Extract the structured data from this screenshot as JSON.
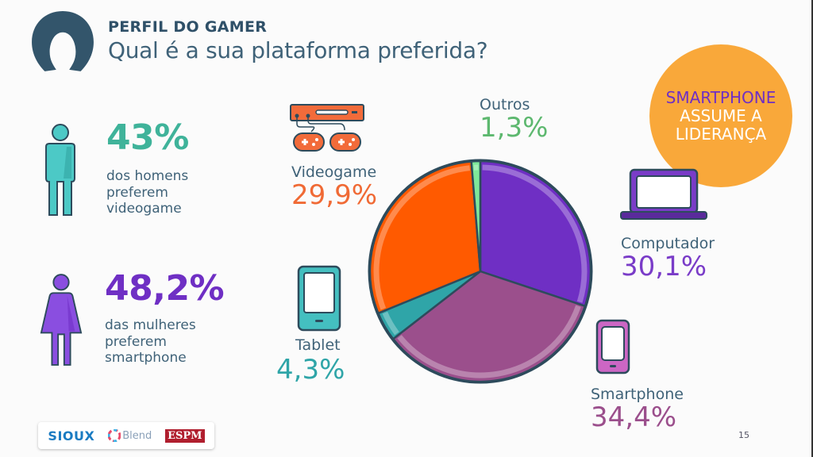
{
  "header": {
    "kicker": "PERFIL DO GAMER",
    "title": "Qual é a sua plataforma preferida?"
  },
  "badge": {
    "line1": "SMARTPHONE",
    "line2": "ASSUME A",
    "line3": "LIDERANÇA",
    "bg_color": "#f9a83a",
    "accent_color": "#6f2fc4"
  },
  "stats": {
    "men": {
      "value": "43%",
      "line1": "dos homens",
      "line2": "preferem",
      "line3": "videogame",
      "color": "#3fb39a"
    },
    "women": {
      "value": "48,2%",
      "line1": "das mulheres",
      "line2": "preferem",
      "line3": "smartphone",
      "color": "#6f2fc4"
    }
  },
  "categories": {
    "outros": {
      "label": "Outros",
      "value": "1,3%",
      "color": "#5db86f",
      "icon": "none"
    },
    "videogame": {
      "label": "Videogame",
      "value": "29,9%",
      "color": "#f06a35",
      "icon": "game-console-icon"
    },
    "tablet": {
      "label": "Tablet",
      "value": "4,3%",
      "color": "#2fa5a8",
      "icon": "tablet-icon"
    },
    "computador": {
      "label": "Computador",
      "value": "30,1%",
      "color": "#7a3cc8",
      "icon": "laptop-icon"
    },
    "smartphone": {
      "label": "Smartphone",
      "value": "34,4%",
      "color": "#9b4f8c",
      "icon": "smartphone-icon"
    }
  },
  "footer": {
    "logos": [
      "SIOUX",
      "Blend",
      "ESPM"
    ],
    "page_number": "15"
  },
  "chart_data": {
    "type": "pie",
    "title": "Qual é a sua plataforma preferida?",
    "categories": [
      "Computador",
      "Smartphone",
      "Tablet",
      "Videogame",
      "Outros"
    ],
    "values": [
      30.1,
      34.4,
      4.3,
      29.9,
      1.3
    ],
    "colors": [
      "#6f2fc4",
      "#9b4f8c",
      "#2fa5a8",
      "#ff5a00",
      "#7ee89a"
    ],
    "start_angle": "12 o'clock, clockwise",
    "unit": "%",
    "legend": "external labels with icons"
  }
}
